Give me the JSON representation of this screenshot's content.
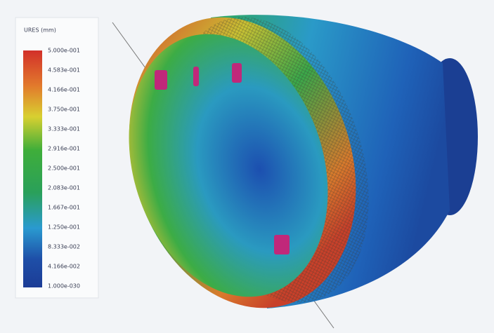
{
  "legend": {
    "title": "URES (mm)",
    "labels": [
      "5.000e-001",
      "4.583e-001",
      "4.166e-001",
      "3.750e-001",
      "3.333e-001",
      "2.916e-001",
      "2.500e-001",
      "2.083e-001",
      "1.667e-001",
      "1.250e-001",
      "8.333e-002",
      "4.166e-002",
      "1.000e-030"
    ]
  }
}
